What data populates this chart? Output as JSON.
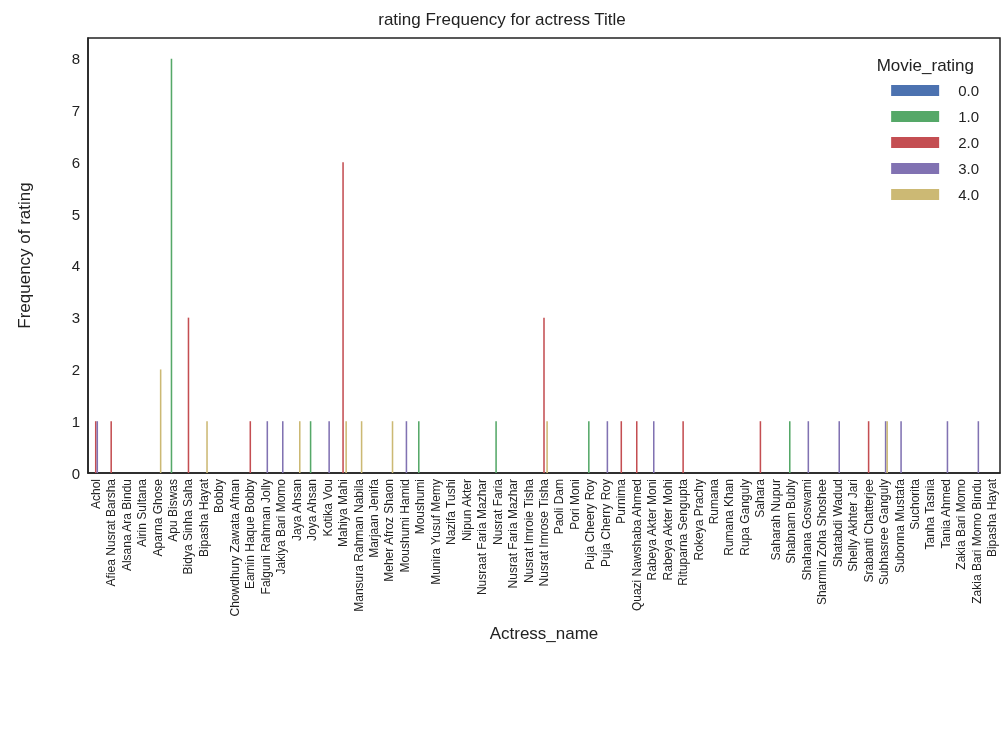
{
  "chart_data": {
    "type": "bar",
    "title": "rating Frequency for actress Title",
    "xlabel": "Actress_name",
    "ylabel": "Frequency of rating",
    "legend_title": "Movie_rating",
    "categories": [
      "Achol",
      "Afiea Nusrat Barsha",
      "Alsana Ara Bindu",
      "Airin Sultana",
      "Aparna Ghose",
      "Apu Biswas",
      "Bidya Sinha Saha",
      "Bipasha Hayat",
      "Bobby",
      "Chowdhury Zawata Afnan",
      "Eamin Haque Bobby",
      "Falguni Rahman Jolly",
      "Jakiya Bari Momo",
      "Jaya Ahsan",
      "Joya Ahsan",
      "Kotika Vou",
      "Mahiya Mahi",
      "Mansura Rahman Nabila",
      "Marjaan Jenifa",
      "Meher Afroz Shaon",
      "Moushumi Hamid",
      "Moushumi",
      "Munira Yusuf Memy",
      "Nazifa Tushi",
      "Nipun Akter",
      "Nusraat Faria Mazhar",
      "Nusrat Faria",
      "Nusrat Faria Mazhar",
      "Nusrat Imroie Tisha",
      "Nusrat Imrose Tisha",
      "Paoli Dam",
      "Pori Moni",
      "Puja Cheery Roy",
      "Puja Cherry Roy",
      "Purnima",
      "Quazi Nawshaba Ahmed",
      "Rabeya Akter Moni",
      "Rabeya Akter Mohi",
      "Rituparna Sengupta",
      "Rokeya Prachy",
      "Rumana",
      "Rumana Khan",
      "Rupa Ganguly",
      "Sahara",
      "Saharah Nupur",
      "Shabnam Bubly",
      "Shahana Goswami",
      "Sharmin Zoha Shoshee",
      "Shatabdi Wadud",
      "Shelly Akhter Jari",
      "Srabanti Chatterjee",
      "Subhasree Ganguly",
      "Subonna Mustafa",
      "Suchorita",
      "Tanha Tasnia",
      "Tania Ahmed",
      "Zakia Bari Momo",
      "Zakia Bari Momo Bindu",
      "Bipasha Hayat"
    ],
    "series": [
      {
        "name": "0.0",
        "color": "#4c72b0",
        "values": [
          0,
          0,
          0,
          0,
          0,
          0,
          0,
          0,
          0,
          0,
          0,
          0,
          0,
          0,
          0,
          0,
          0,
          0,
          0,
          0,
          0,
          0,
          0,
          0,
          0,
          0,
          0,
          0,
          0,
          0,
          0,
          0,
          0,
          0,
          0,
          0,
          0,
          0,
          0,
          0,
          0,
          0,
          0,
          0,
          0,
          0,
          0,
          0,
          0,
          0,
          0,
          0,
          0,
          0,
          0,
          0,
          0,
          0,
          0
        ]
      },
      {
        "name": "1.0",
        "color": "#55a868",
        "values": [
          0,
          0,
          0,
          0,
          0,
          8,
          0,
          0,
          0,
          0,
          0,
          0,
          0,
          0,
          1,
          0,
          0,
          0,
          0,
          0,
          0,
          1,
          0,
          0,
          0,
          0,
          1,
          0,
          0,
          0,
          0,
          0,
          1,
          0,
          0,
          0,
          0,
          0,
          0,
          0,
          0,
          0,
          0,
          0,
          0,
          1,
          0,
          0,
          0,
          0,
          0,
          0,
          0,
          0,
          0,
          0,
          0,
          0,
          0
        ]
      },
      {
        "name": "2.0",
        "color": "#c44e52",
        "values": [
          1,
          1,
          0,
          0,
          0,
          0,
          3,
          0,
          0,
          0,
          1,
          0,
          0,
          0,
          0,
          0,
          6,
          0,
          0,
          0,
          0,
          0,
          0,
          0,
          0,
          0,
          0,
          0,
          0,
          3,
          0,
          0,
          0,
          0,
          1,
          1,
          0,
          0,
          1,
          0,
          0,
          0,
          0,
          1,
          0,
          0,
          0,
          0,
          0,
          0,
          1,
          0,
          0,
          0,
          0,
          0,
          0,
          0,
          0
        ]
      },
      {
        "name": "3.0",
        "color": "#8172b2",
        "values": [
          1,
          0,
          0,
          0,
          0,
          0,
          0,
          0,
          0,
          0,
          0,
          1,
          1,
          0,
          0,
          1,
          0,
          0,
          0,
          0,
          1,
          0,
          0,
          0,
          0,
          0,
          0,
          0,
          0,
          0,
          0,
          0,
          0,
          1,
          0,
          0,
          1,
          0,
          0,
          0,
          0,
          0,
          0,
          0,
          0,
          0,
          1,
          0,
          1,
          0,
          0,
          1,
          1,
          0,
          0,
          1,
          0,
          1,
          0
        ]
      },
      {
        "name": "4.0",
        "color": "#ccb974",
        "values": [
          0,
          0,
          0,
          0,
          2,
          0,
          0,
          1,
          0,
          0,
          0,
          0,
          0,
          1,
          0,
          0,
          1,
          1,
          0,
          1,
          0,
          0,
          0,
          0,
          0,
          0,
          0,
          0,
          0,
          1,
          0,
          0,
          0,
          0,
          0,
          0,
          0,
          0,
          0,
          0,
          0,
          0,
          0,
          0,
          0,
          0,
          0,
          0,
          0,
          0,
          0,
          1,
          0,
          0,
          0,
          0,
          0,
          0,
          0
        ]
      }
    ],
    "ylim": [
      0,
      8.4
    ],
    "yticks": [
      0,
      1,
      2,
      3,
      4,
      5,
      6,
      7,
      8
    ],
    "grid": false,
    "legend": "top right"
  }
}
